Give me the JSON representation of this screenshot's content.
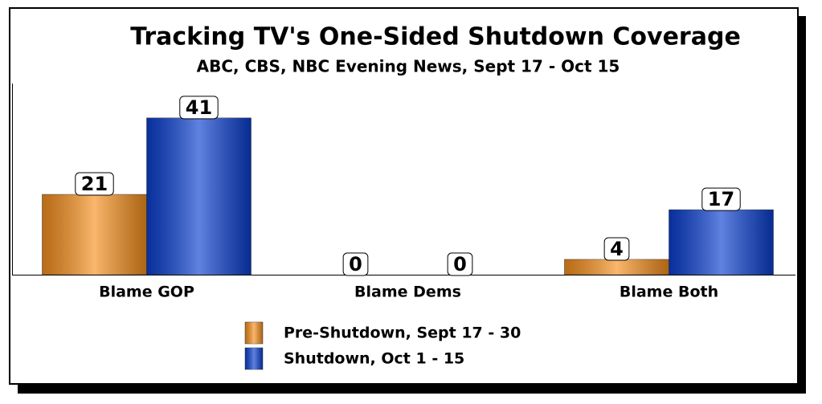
{
  "chart_data": {
    "type": "bar",
    "title": "Tracking TV's One-Sided Shutdown Coverage",
    "subtitle": "ABC, CBS, NBC Evening News, Sept 17 - Oct 15",
    "categories": [
      "Blame GOP",
      "Blame Dems",
      "Blame Both"
    ],
    "series": [
      {
        "name": "Pre-Shutdown, Sept 17 - 30",
        "color": "#f7901e",
        "values": [
          21,
          0,
          4
        ]
      },
      {
        "name": "Shutdown, Oct 1 - 15",
        "color": "#0a3fd0",
        "values": [
          41,
          0,
          17
        ]
      }
    ],
    "ylim": [
      0,
      50
    ]
  }
}
